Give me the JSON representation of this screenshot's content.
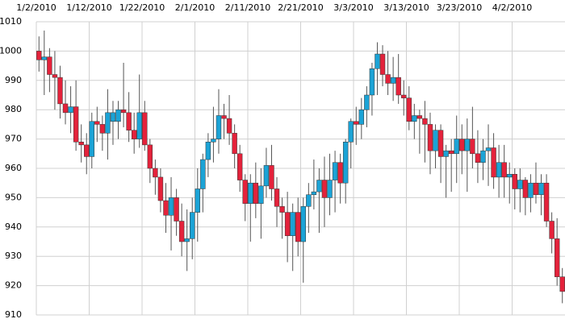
{
  "chart_data": {
    "type": "candlestick",
    "x": [
      "1/2/2010",
      "1/3/2010",
      "1/4/2010",
      "1/5/2010",
      "1/6/2010",
      "1/7/2010",
      "1/8/2010",
      "1/9/2010",
      "1/10/2010",
      "1/11/2010",
      "1/12/2010",
      "1/13/2010",
      "1/14/2010",
      "1/15/2010",
      "1/16/2010",
      "1/17/2010",
      "1/18/2010",
      "1/19/2010",
      "1/20/2010",
      "1/21/2010",
      "1/22/2010",
      "1/23/2010",
      "1/24/2010",
      "1/25/2010",
      "1/26/2010",
      "1/27/2010",
      "1/28/2010",
      "1/29/2010",
      "1/30/2010",
      "1/31/2010",
      "2/1/2010",
      "2/2/2010",
      "2/3/2010",
      "2/4/2010",
      "2/5/2010",
      "2/6/2010",
      "2/7/2010",
      "2/8/2010",
      "2/9/2010",
      "2/10/2010",
      "2/11/2010",
      "2/12/2010",
      "2/13/2010",
      "2/14/2010",
      "2/15/2010",
      "2/16/2010",
      "2/17/2010",
      "2/18/2010",
      "2/19/2010",
      "2/20/2010",
      "2/21/2010",
      "2/22/2010",
      "2/23/2010",
      "2/24/2010",
      "2/25/2010",
      "2/26/2010",
      "2/27/2010",
      "2/28/2010",
      "3/1/2010",
      "3/2/2010",
      "3/3/2010",
      "3/4/2010",
      "3/5/2010",
      "3/6/2010",
      "3/7/2010",
      "3/8/2010",
      "3/9/2010",
      "3/10/2010",
      "3/11/2010",
      "3/12/2010",
      "3/13/2010",
      "3/14/2010",
      "3/15/2010",
      "3/16/2010",
      "3/17/2010",
      "3/18/2010",
      "3/19/2010",
      "3/20/2010",
      "3/21/2010",
      "3/22/2010",
      "3/23/2010",
      "3/24/2010",
      "3/25/2010",
      "3/26/2010",
      "3/27/2010",
      "3/28/2010",
      "3/29/2010",
      "3/30/2010",
      "3/31/2010",
      "4/1/2010",
      "4/2/2010",
      "4/3/2010",
      "4/4/2010",
      "4/5/2010",
      "4/6/2010",
      "4/7/2010",
      "4/8/2010",
      "4/9/2010",
      "4/10/2010",
      "4/11/2010"
    ],
    "open": [
      1000,
      997,
      998,
      992,
      991,
      982,
      979,
      981,
      969,
      968,
      964,
      976,
      975,
      972,
      976,
      976,
      980,
      979,
      973,
      970,
      979,
      968,
      960,
      957,
      949,
      944,
      950,
      942,
      935,
      936,
      945,
      953,
      963,
      969,
      970,
      978,
      977,
      972,
      965,
      956,
      948,
      955,
      948,
      954,
      961,
      953,
      947,
      945,
      937,
      945,
      935,
      947,
      951,
      952,
      956,
      950,
      956,
      962,
      955,
      969,
      976,
      975,
      980,
      985,
      994,
      999,
      992,
      989,
      991,
      985,
      984,
      976,
      978,
      977,
      975,
      966,
      973,
      964,
      966,
      965,
      970,
      966,
      970,
      965,
      962,
      966,
      967,
      957,
      962,
      957,
      958,
      953,
      956,
      950,
      955,
      951,
      955,
      942,
      936,
      923
    ],
    "high": [
      1005,
      1007,
      1001,
      1000,
      995,
      990,
      988,
      990,
      975,
      972,
      979,
      981,
      978,
      987,
      983,
      983,
      996,
      986,
      979,
      992,
      983,
      970,
      963,
      960,
      955,
      957,
      953,
      948,
      946,
      950,
      960,
      965,
      972,
      981,
      987,
      982,
      985,
      975,
      968,
      958,
      958,
      962,
      960,
      967,
      968,
      957,
      950,
      952,
      948,
      950,
      950,
      955,
      963,
      960,
      964,
      965,
      966,
      965,
      970,
      977,
      981,
      984,
      988,
      996,
      1003,
      1002,
      1000,
      998,
      999,
      990,
      988,
      982,
      980,
      983,
      979,
      975,
      975,
      968,
      970,
      978,
      975,
      977,
      981,
      973,
      970,
      975,
      972,
      968,
      968,
      962,
      960,
      960,
      957,
      958,
      962,
      958,
      958,
      945,
      943,
      926
    ],
    "low": [
      993,
      985,
      986,
      980,
      977,
      975,
      972,
      966,
      962,
      958,
      960,
      969,
      966,
      963,
      968,
      970,
      974,
      969,
      965,
      967,
      966,
      955,
      951,
      945,
      938,
      932,
      937,
      930,
      925,
      929,
      935,
      945,
      957,
      962,
      965,
      970,
      968,
      960,
      952,
      942,
      935,
      943,
      936,
      950,
      949,
      940,
      936,
      928,
      925,
      930,
      921,
      938,
      946,
      938,
      940,
      944,
      945,
      948,
      948,
      960,
      968,
      970,
      974,
      978,
      985,
      988,
      985,
      983,
      982,
      978,
      973,
      970,
      965,
      962,
      958,
      960,
      955,
      950,
      952,
      955,
      958,
      952,
      960,
      955,
      956,
      954,
      953,
      950,
      950,
      948,
      946,
      945,
      944,
      945,
      948,
      944,
      940,
      931,
      920,
      914
    ],
    "close": [
      997,
      998,
      992,
      991,
      982,
      979,
      981,
      969,
      968,
      964,
      976,
      975,
      972,
      979,
      979,
      980,
      979,
      973,
      970,
      979,
      968,
      960,
      957,
      949,
      944,
      950,
      942,
      935,
      936,
      945,
      953,
      963,
      969,
      970,
      978,
      977,
      972,
      965,
      956,
      948,
      955,
      948,
      954,
      961,
      953,
      947,
      945,
      937,
      945,
      935,
      947,
      951,
      952,
      956,
      950,
      956,
      962,
      955,
      969,
      976,
      975,
      980,
      985,
      994,
      999,
      992,
      989,
      991,
      985,
      984,
      976,
      978,
      977,
      975,
      966,
      973,
      964,
      966,
      965,
      970,
      966,
      970,
      965,
      962,
      966,
      967,
      957,
      962,
      957,
      958,
      953,
      956,
      950,
      955,
      951,
      955,
      942,
      936,
      923,
      918
    ],
    "up_color": "#1ba3d6",
    "down_color": "#e4223b",
    "xlim": [
      "1/2/2010",
      "4/12/2010"
    ],
    "xticks": [
      "1/2/2010",
      "1/12/2010",
      "1/22/2010",
      "2/1/2010",
      "2/11/2010",
      "2/21/2010",
      "3/3/2010",
      "3/13/2010",
      "3/23/2010",
      "4/2/2010"
    ],
    "ylim": [
      910,
      1010
    ],
    "yticks": [
      910,
      920,
      930,
      940,
      950,
      960,
      970,
      980,
      990,
      1000,
      1010
    ],
    "grid": true
  }
}
